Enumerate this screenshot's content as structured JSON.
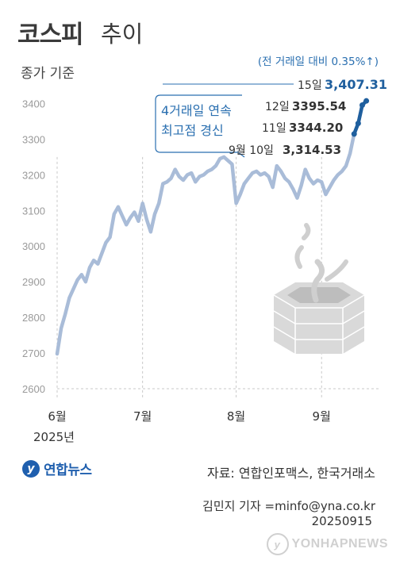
{
  "header": {
    "title_main": "코스피",
    "title_sub": "추이",
    "subtitle": "종가 기준"
  },
  "chart_data": {
    "type": "line",
    "title": "코스피 추이",
    "subtitle": "종가 기준",
    "ylim": [
      2600,
      3450
    ],
    "yticks": [
      2600,
      2700,
      2800,
      2900,
      3000,
      3100,
      3200,
      3300,
      3400
    ],
    "months": [
      {
        "label": "6월",
        "x": 0
      },
      {
        "label": "7월",
        "x": 21
      },
      {
        "label": "8월",
        "x": 44
      },
      {
        "label": "9월",
        "x": 65
      }
    ],
    "year_label": "2025년",
    "x_max": 79,
    "series": [
      {
        "values": [
          [
            0,
            2698
          ],
          [
            1,
            2770
          ],
          [
            2,
            2810
          ],
          [
            3,
            2855
          ],
          [
            4,
            2880
          ],
          [
            5,
            2905
          ],
          [
            6,
            2920
          ],
          [
            7,
            2900
          ],
          [
            8,
            2940
          ],
          [
            9,
            2960
          ],
          [
            10,
            2950
          ],
          [
            11,
            2980
          ],
          [
            12,
            3010
          ],
          [
            13,
            3025
          ],
          [
            14,
            3090
          ],
          [
            15,
            3110
          ],
          [
            16,
            3085
          ],
          [
            17,
            3060
          ],
          [
            18,
            3080
          ],
          [
            19,
            3095
          ],
          [
            20,
            3070
          ],
          [
            21,
            3120
          ],
          [
            22,
            3075
          ],
          [
            23,
            3040
          ],
          [
            24,
            3090
          ],
          [
            25,
            3120
          ],
          [
            26,
            3175
          ],
          [
            27,
            3180
          ],
          [
            28,
            3190
          ],
          [
            29,
            3215
          ],
          [
            30,
            3195
          ],
          [
            31,
            3185
          ],
          [
            32,
            3200
          ],
          [
            33,
            3205
          ],
          [
            34,
            3180
          ],
          [
            35,
            3195
          ],
          [
            36,
            3200
          ],
          [
            37,
            3210
          ],
          [
            38,
            3215
          ],
          [
            39,
            3225
          ],
          [
            40,
            3245
          ],
          [
            41,
            3250
          ],
          [
            42,
            3240
          ],
          [
            43,
            3230
          ],
          [
            44,
            3120
          ],
          [
            45,
            3145
          ],
          [
            46,
            3175
          ],
          [
            47,
            3190
          ],
          [
            48,
            3205
          ],
          [
            49,
            3210
          ],
          [
            50,
            3200
          ],
          [
            51,
            3205
          ],
          [
            52,
            3195
          ],
          [
            53,
            3165
          ],
          [
            54,
            3225
          ],
          [
            55,
            3210
          ],
          [
            56,
            3190
          ],
          [
            57,
            3180
          ],
          [
            58,
            3160
          ],
          [
            59,
            3135
          ],
          [
            60,
            3170
          ],
          [
            61,
            3215
          ],
          [
            62,
            3190
          ],
          [
            63,
            3175
          ],
          [
            64,
            3185
          ],
          [
            65,
            3180
          ],
          [
            66,
            3145
          ],
          [
            67,
            3165
          ],
          [
            68,
            3185
          ],
          [
            69,
            3200
          ],
          [
            70,
            3210
          ],
          [
            71,
            3225
          ],
          [
            72,
            3260
          ],
          [
            73,
            3314.53
          ],
          [
            74,
            3344.2
          ],
          [
            75,
            3395.54
          ],
          [
            76,
            3407.31
          ]
        ]
      }
    ],
    "annotations": [
      {
        "date": "15일",
        "value": "3,407.31",
        "highlight": true
      },
      {
        "date": "12일",
        "value": "3395.54"
      },
      {
        "date": "11일",
        "value": "3344.20"
      },
      {
        "date": "9월 10일",
        "value": "3,314.53"
      }
    ],
    "change_note": "(전 거래일 대비 0.35%↑)",
    "box_lines": [
      "4거래일 연속",
      "최고점 경신"
    ],
    "colors": {
      "line": "#a9bcd8",
      "highlight": "#1f5f9e",
      "box": "#2a6fb0",
      "grid": "#c8c8c8"
    }
  },
  "footer": {
    "logo_text": "연합뉴스",
    "source": "자료: 연합인포맥스, 한국거래소",
    "author": "김민지 기자 =minfo@yna.co.kr",
    "date_code": "20250915",
    "watermark": "YONHAPNEWS"
  }
}
